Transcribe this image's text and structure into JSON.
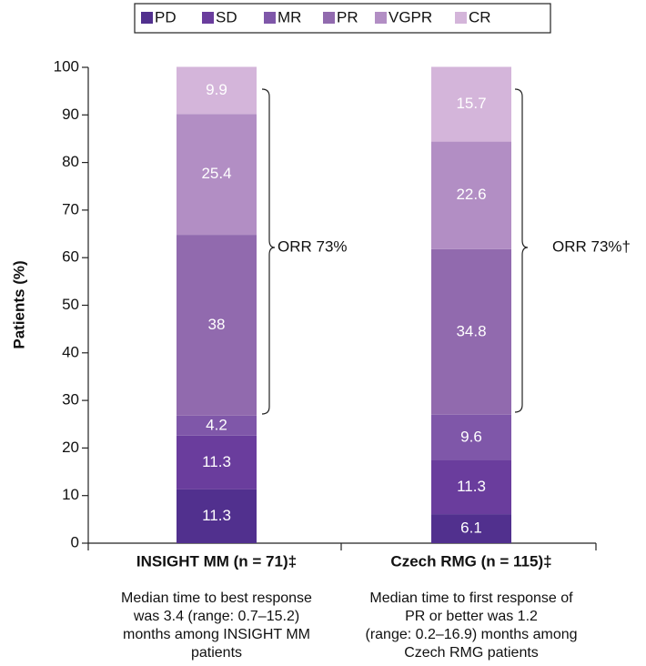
{
  "chart_data": {
    "type": "stacked_bar",
    "categories": [
      "INSIGHT MM (n = 71)‡",
      "Czech RMG (n = 115)‡"
    ],
    "category_notes": [
      [
        "Median time to best response",
        "was 3.4 (range: 0.7–15.2)",
        "months among INSIGHT MM",
        "patients"
      ],
      [
        "Median time to first response of",
        "PR or better was 1.2",
        "(range: 0.2–16.9) months among",
        "Czech RMG patients"
      ]
    ],
    "series": [
      {
        "name": "PD",
        "color": "#51308e",
        "values": [
          11.3,
          6.1
        ]
      },
      {
        "name": "SD",
        "color": "#6a3d9d",
        "values": [
          11.3,
          11.3
        ]
      },
      {
        "name": "MR",
        "color": "#7f57a9",
        "values": [
          4.2,
          9.6
        ]
      },
      {
        "name": "PR",
        "color": "#916aae",
        "values": [
          38,
          34.8
        ]
      },
      {
        "name": "VGPR",
        "color": "#b28ec4",
        "values": [
          25.4,
          22.6
        ]
      },
      {
        "name": "CR",
        "color": "#d4b5da",
        "values": [
          9.9,
          15.7
        ]
      }
    ],
    "ylabel": "Patients (%)",
    "ylim": [
      0,
      100
    ],
    "yticks": [
      0,
      10,
      20,
      30,
      40,
      50,
      60,
      70,
      80,
      90,
      100
    ],
    "annotations": [
      "ORR 73%",
      "ORR 73%†"
    ],
    "legend": "top"
  }
}
